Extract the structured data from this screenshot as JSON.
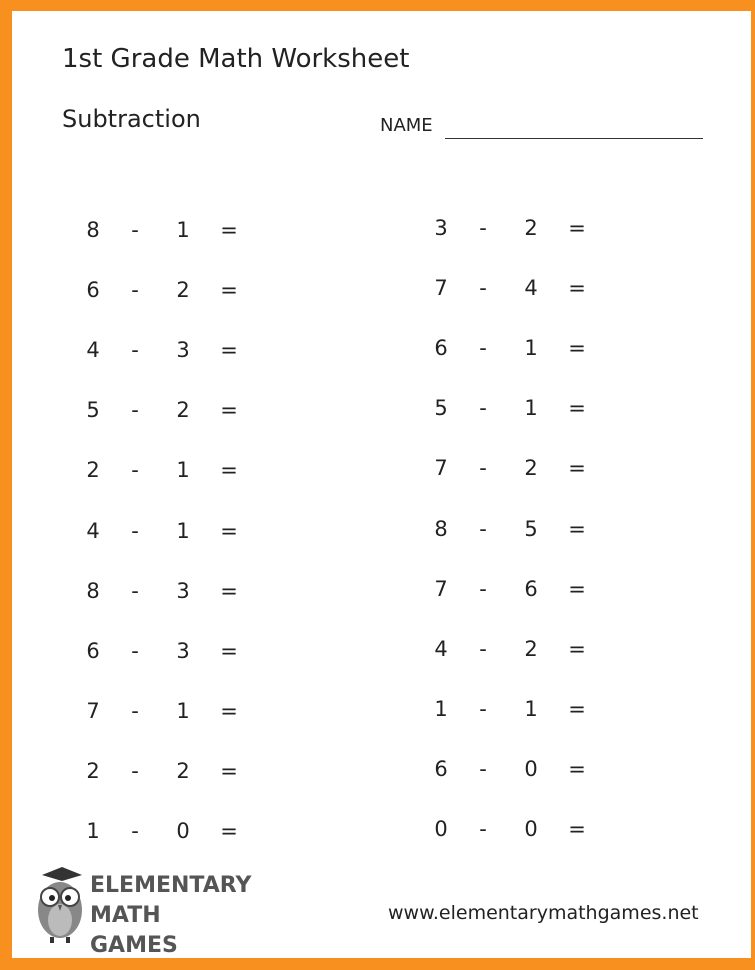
{
  "colors": {
    "border": "#f7901e"
  },
  "title": "1st Grade Math Worksheet",
  "subtitle": "Subtraction",
  "name_label": "NAME",
  "left_problems": [
    {
      "a": "8",
      "op": "-",
      "b": "1",
      "eq": "="
    },
    {
      "a": "6",
      "op": "-",
      "b": "2",
      "eq": "="
    },
    {
      "a": "4",
      "op": "-",
      "b": "3",
      "eq": "="
    },
    {
      "a": "5",
      "op": "-",
      "b": "2",
      "eq": "="
    },
    {
      "a": "2",
      "op": "-",
      "b": "1",
      "eq": "="
    },
    {
      "a": "4",
      "op": "-",
      "b": "1",
      "eq": "="
    },
    {
      "a": "8",
      "op": "-",
      "b": "3",
      "eq": "="
    },
    {
      "a": "6",
      "op": "-",
      "b": "3",
      "eq": "="
    },
    {
      "a": "7",
      "op": "-",
      "b": "1",
      "eq": "="
    },
    {
      "a": "2",
      "op": "-",
      "b": "2",
      "eq": "="
    },
    {
      "a": "1",
      "op": "-",
      "b": "0",
      "eq": "="
    }
  ],
  "right_problems": [
    {
      "a": "3",
      "op": "-",
      "b": "2",
      "eq": "="
    },
    {
      "a": "7",
      "op": "-",
      "b": "4",
      "eq": "="
    },
    {
      "a": "6",
      "op": "-",
      "b": "1",
      "eq": "="
    },
    {
      "a": "5",
      "op": "-",
      "b": "1",
      "eq": "="
    },
    {
      "a": "7",
      "op": "-",
      "b": "2",
      "eq": "="
    },
    {
      "a": "8",
      "op": "-",
      "b": "5",
      "eq": "="
    },
    {
      "a": "7",
      "op": "-",
      "b": "6",
      "eq": "="
    },
    {
      "a": "4",
      "op": "-",
      "b": "2",
      "eq": "="
    },
    {
      "a": "1",
      "op": "-",
      "b": "1",
      "eq": "="
    },
    {
      "a": "6",
      "op": "-",
      "b": "0",
      "eq": "="
    },
    {
      "a": "0",
      "op": "-",
      "b": "0",
      "eq": "="
    }
  ],
  "logo": {
    "line1": "ELEMENTARY",
    "line2": "MATH GAMES",
    "icon": "owl-graduate-icon"
  },
  "footer_url": "www.elementarymathgames.net"
}
